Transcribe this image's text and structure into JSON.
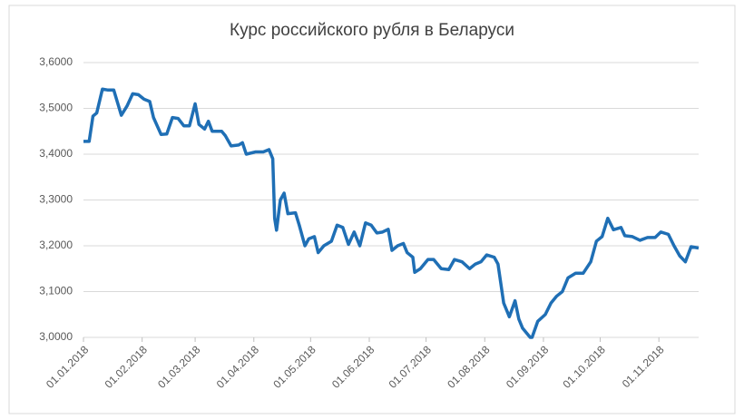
{
  "chart_data": {
    "type": "line",
    "title": "Курс российского рубля в Беларуси",
    "x": [
      "01.01.2018",
      "04.01.2018",
      "06.01.2018",
      "08.01.2018",
      "11.01.2018",
      "14.01.2018",
      "17.01.2018",
      "21.01.2018",
      "24.01.2018",
      "27.01.2018",
      "30.01.2018",
      "02.02.2018",
      "05.02.2018",
      "07.02.2018",
      "11.02.2018",
      "14.02.2018",
      "17.02.2018",
      "20.02.2018",
      "23.02.2018",
      "26.02.2018",
      "01.03.2018",
      "03.03.2018",
      "06.03.2018",
      "08.03.2018",
      "10.03.2018",
      "15.03.2018",
      "17.03.2018",
      "20.03.2018",
      "24.03.2018",
      "26.03.2018",
      "28.03.2018",
      "31.03.2018",
      "02.04.2018",
      "06.04.2018",
      "09.04.2018",
      "11.04.2018",
      "12.04.2018",
      "13.04.2018",
      "15.04.2018",
      "17.04.2018",
      "19.04.2018",
      "23.04.2018",
      "25.04.2018",
      "28.04.2018",
      "30.04.2018",
      "03.05.2018",
      "05.05.2018",
      "08.05.2018",
      "12.05.2018",
      "15.05.2018",
      "18.05.2018",
      "21.05.2018",
      "24.05.2018",
      "27.05.2018",
      "30.05.2018",
      "02.06.2018",
      "05.06.2018",
      "08.06.2018",
      "11.06.2018",
      "13.06.2018",
      "16.06.2018",
      "19.06.2018",
      "21.06.2018",
      "24.06.2018",
      "25.06.2018",
      "28.06.2018",
      "02.07.2018",
      "05.07.2018",
      "09.07.2018",
      "13.07.2018",
      "16.07.2018",
      "20.07.2018",
      "24.07.2018",
      "27.07.2018",
      "30.07.2018",
      "02.08.2018",
      "06.08.2018",
      "08.08.2018",
      "11.08.2018",
      "14.08.2018",
      "17.08.2018",
      "19.08.2018",
      "21.08.2018",
      "25.08.2018",
      "26.08.2018",
      "29.08.2018",
      "02.09.2018",
      "05.09.2018",
      "08.09.2018",
      "11.09.2018",
      "14.09.2018",
      "18.09.2018",
      "22.09.2018",
      "26.09.2018",
      "29.09.2018",
      "02.10.2018",
      "05.10.2018",
      "08.10.2018",
      "12.10.2018",
      "14.10.2018",
      "18.10.2018",
      "22.10.2018",
      "26.10.2018",
      "30.10.2018",
      "02.11.2018",
      "06.11.2018",
      "09.11.2018",
      "12.11.2018",
      "15.11.2018",
      "18.11.2018",
      "22.11.2018"
    ],
    "series": [
      {
        "color": "#1f6fb5",
        "values": [
          3.428,
          3.428,
          3.483,
          3.49,
          3.542,
          3.54,
          3.54,
          3.485,
          3.505,
          3.532,
          3.53,
          3.52,
          3.515,
          3.48,
          3.443,
          3.444,
          3.48,
          3.478,
          3.462,
          3.462,
          3.51,
          3.465,
          3.455,
          3.472,
          3.45,
          3.45,
          3.44,
          3.418,
          3.42,
          3.425,
          3.4,
          3.403,
          3.405,
          3.405,
          3.41,
          3.39,
          3.26,
          3.234,
          3.3,
          3.315,
          3.27,
          3.272,
          3.245,
          3.2,
          3.215,
          3.22,
          3.185,
          3.2,
          3.21,
          3.245,
          3.24,
          3.203,
          3.23,
          3.2,
          3.25,
          3.245,
          3.228,
          3.23,
          3.236,
          3.19,
          3.2,
          3.205,
          3.185,
          3.175,
          3.142,
          3.15,
          3.17,
          3.17,
          3.15,
          3.148,
          3.17,
          3.165,
          3.15,
          3.16,
          3.165,
          3.18,
          3.175,
          3.16,
          3.075,
          3.045,
          3.08,
          3.04,
          3.02,
          3.0,
          3.0,
          3.035,
          3.05,
          3.075,
          3.09,
          3.1,
          3.13,
          3.14,
          3.14,
          3.165,
          3.21,
          3.22,
          3.26,
          3.235,
          3.24,
          3.222,
          3.22,
          3.212,
          3.218,
          3.218,
          3.23,
          3.225,
          3.2,
          3.178,
          3.165,
          3.198,
          3.195
        ]
      }
    ],
    "xlim": [
      "01.01.2018",
      "22.11.2018"
    ],
    "xticks": [
      "01.01.2018",
      "01.02.2018",
      "01.03.2018",
      "01.04.2018",
      "01.05.2018",
      "01.06.2018",
      "01.07.2018",
      "01.08.2018",
      "01.09.2018",
      "01.10.2018",
      "01.11.2018"
    ],
    "ylim": [
      3.0,
      3.6
    ],
    "yticks": [
      {
        "value": 3.0,
        "label": "3,0000"
      },
      {
        "value": 3.1,
        "label": "3,1000"
      },
      {
        "value": 3.2,
        "label": "3,2000"
      },
      {
        "value": 3.3,
        "label": "3,3000"
      },
      {
        "value": 3.4,
        "label": "3,4000"
      },
      {
        "value": 3.5,
        "label": "3,5000"
      },
      {
        "value": 3.6,
        "label": "3,6000"
      }
    ],
    "grid": true
  }
}
